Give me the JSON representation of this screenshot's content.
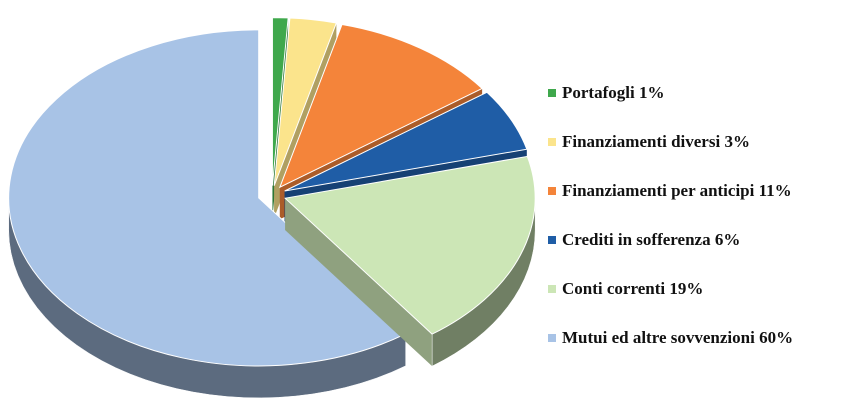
{
  "chart_data": {
    "type": "pie3d",
    "categories": [
      "Portafogli 1%",
      "Finanziamenti diversi 3%",
      "Finanziamenti per anticipi 11%",
      "Crediti in sofferenza 6%",
      "Conti correnti 19%",
      "Mutui ed altre sovvenzioni 60%"
    ],
    "values": [
      1,
      3,
      11,
      6,
      19,
      60
    ],
    "colors": [
      "#3fa84c",
      "#fbe48c",
      "#f4843a",
      "#1f5da6",
      "#cce6b6",
      "#a8c3e6"
    ]
  }
}
